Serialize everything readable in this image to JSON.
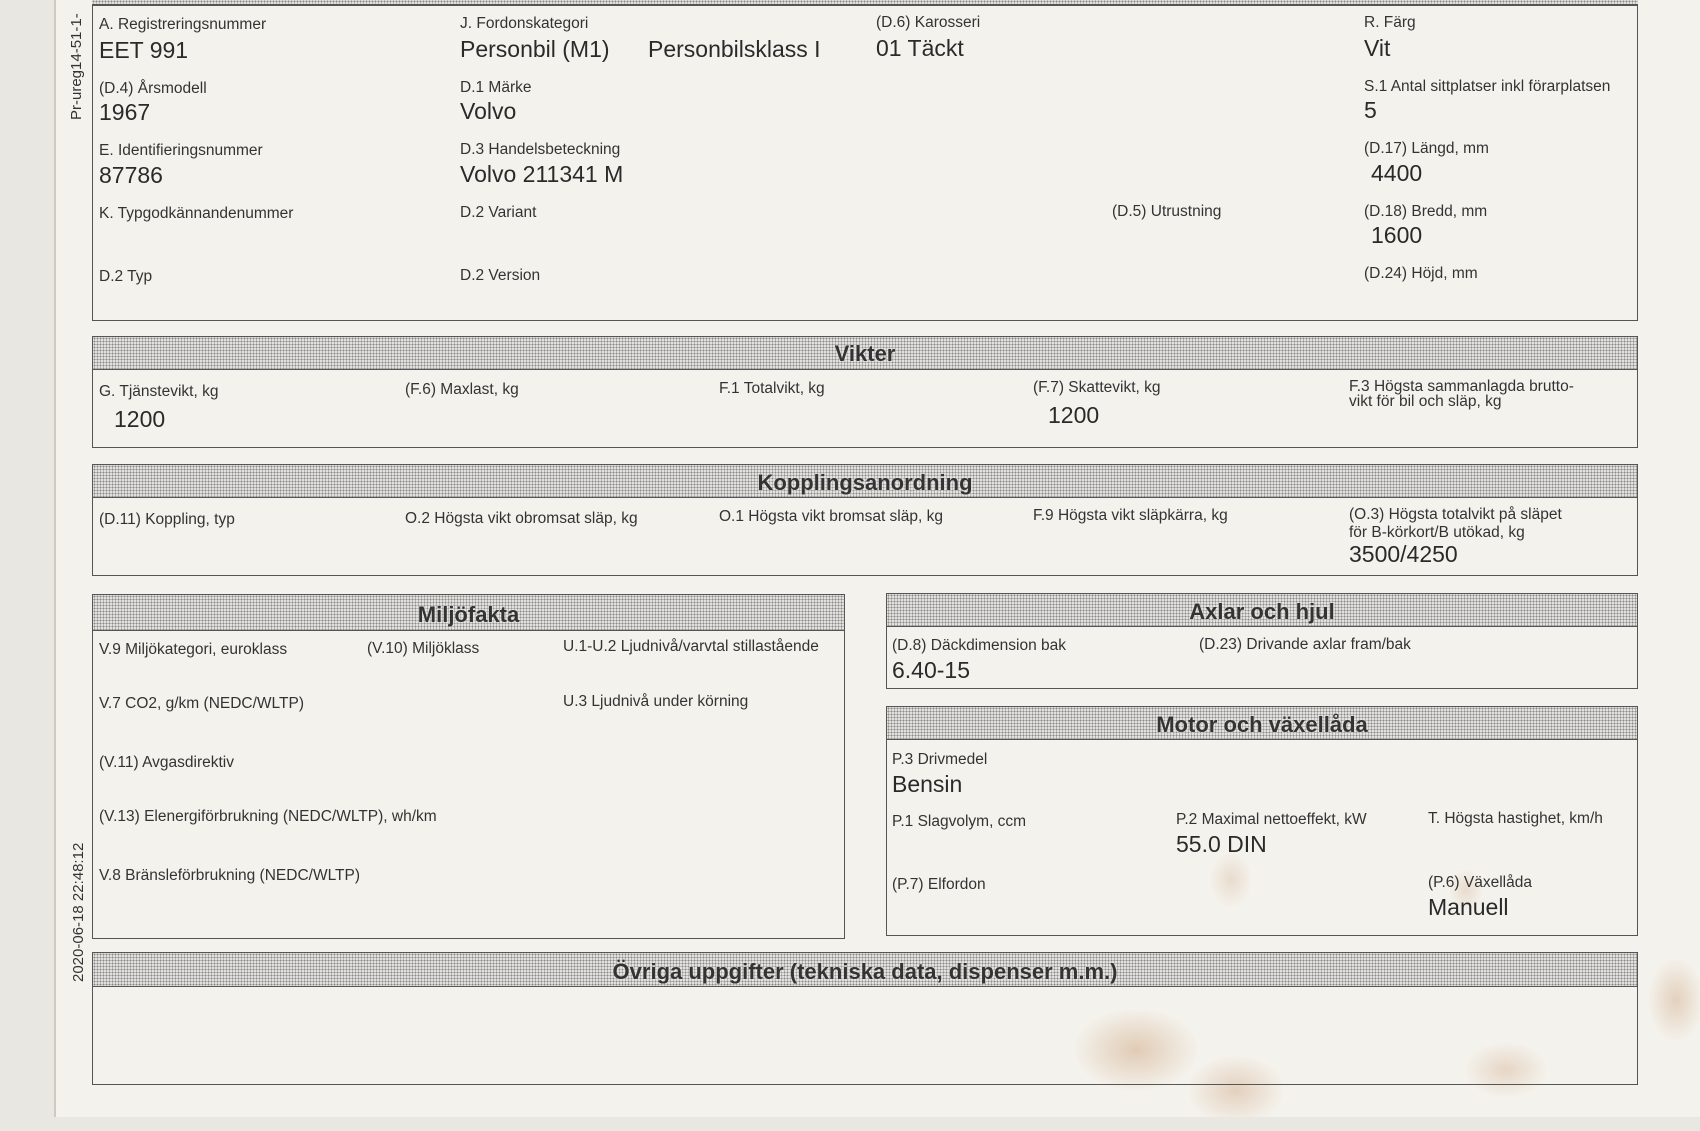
{
  "side_text": {
    "top": "Pr-ureg14-51-1-",
    "date": "2020-06-18 22:48:12"
  },
  "vehicle": {
    "reg_label": "A. Registreringsnummer",
    "reg_value": "EET 991",
    "category_label": "J. Fordonskategori",
    "category_value": "Personbil (M1)",
    "class_value": "Personbilsklass I",
    "body_label": "(D.6) Karosseri",
    "body_value": "01 Täckt",
    "color_label": "R. Färg",
    "color_value": "Vit",
    "year_label": "(D.4) Årsmodell",
    "year_value": "1967",
    "make_label": "D.1 Märke",
    "make_value": "Volvo",
    "seats_label": "S.1 Antal sittplatser inkl förarplatsen",
    "seats_value": "5",
    "vin_label": "E. Identifieringsnummer",
    "vin_value": "87786",
    "trade_label": "D.3 Handelsbeteckning",
    "trade_value": "Volvo 211341 M",
    "length_label": "(D.17) Längd, mm",
    "length_value": "4400",
    "type_approval_label": "K. Typgodkännandenummer",
    "variant_label": "D.2 Variant",
    "equipment_label": "(D.5) Utrustning",
    "width_label": "(D.18) Bredd, mm",
    "width_value": "1600",
    "type_label": "D.2 Typ",
    "version_label": "D.2 Version",
    "height_label": "(D.24) Höjd, mm"
  },
  "weights": {
    "title": "Vikter",
    "service_label": "G. Tjänstevikt, kg",
    "service_value": "1200",
    "maxload_label": "(F.6) Maxlast, kg",
    "total_label": "F.1 Totalvikt, kg",
    "tax_label": "(F.7) Skattevikt, kg",
    "tax_value": "1200",
    "combined_label_1": "F.3 Högsta sammanlagda brutto-",
    "combined_label_2": "vikt för bil och släp, kg"
  },
  "coupling": {
    "title": "Kopplingsanordning",
    "type_label": "(D.11) Koppling, typ",
    "unbraked_label": "O.2 Högsta vikt obromsat släp, kg",
    "braked_label": "O.1 Högsta vikt bromsat släp, kg",
    "cart_label": "F.9 Högsta vikt släpkärra, kg",
    "btotal_label_1": "(O.3) Högsta totalvikt på släpet",
    "btotal_label_2": "för B-körkort/B utökad, kg",
    "btotal_value": "3500/4250"
  },
  "environment": {
    "title": "Miljöfakta",
    "euro_label": "V.9 Miljökategori, euroklass",
    "class_label": "(V.10) Miljöklass",
    "noise_still_label": "U.1-U.2 Ljudnivå/varvtal stillastående",
    "co2_label": "V.7 CO2, g/km (NEDC/WLTP)",
    "noise_drive_label": "U.3 Ljudnivå under körning",
    "exhaust_label": "(V.11) Avgasdirektiv",
    "electric_label": "(V.13) Elenergiförbrukning (NEDC/WLTP), wh/km",
    "fuel_cons_label": "V.8 Bränsleförbrukning (NEDC/WLTP)"
  },
  "axles": {
    "title": "Axlar och hjul",
    "tyre_label": "(D.8) Däckdimension bak",
    "tyre_value": "6.40-15",
    "drive_label": "(D.23) Drivande axlar fram/bak"
  },
  "engine": {
    "title": "Motor och växellåda",
    "fuel_label": "P.3 Drivmedel",
    "fuel_value": "Bensin",
    "displacement_label": "P.1 Slagvolym, ccm",
    "power_label": "P.2 Maximal nettoeffekt, kW",
    "power_value": "55.0 DIN",
    "speed_label": "T. Högsta hastighet, km/h",
    "electric_label": "(P.7) Elfordon",
    "gearbox_label": "(P.6) Växellåda",
    "gearbox_value": "Manuell"
  },
  "other": {
    "title": "Övriga uppgifter (tekniska data, dispenser m.m.)"
  }
}
